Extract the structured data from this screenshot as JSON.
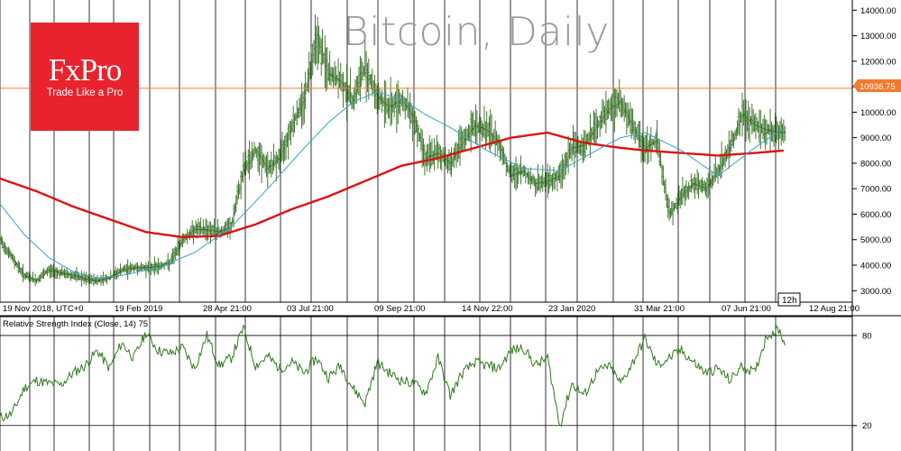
{
  "watermark": "Bitcoin, Daily",
  "logo": {
    "brand": "FxPro",
    "tagline": "Trade Like a Pro"
  },
  "timeframe_badge": "12h",
  "price_panel": {
    "last_price_label": "10936.75",
    "last_price": 10936.75,
    "y_ticks": [
      "3000.00",
      "4000.00",
      "5000.00",
      "6000.00",
      "7000.00",
      "8000.00",
      "9000.00",
      "10000.00",
      "11000.00",
      "12000.00",
      "13000.00",
      "14000.00"
    ],
    "y_tick_values": [
      3000,
      4000,
      5000,
      6000,
      7000,
      8000,
      9000,
      10000,
      11000,
      12000,
      13000,
      14000
    ],
    "ylim": [
      2550,
      14400
    ]
  },
  "rsi_panel": {
    "title": "Relative Strength Index (Close, 14) 75",
    "levels": [
      "80",
      "20"
    ],
    "level_values": [
      80,
      20
    ],
    "ylim": [
      3,
      92
    ]
  },
  "x_ticks": [
    "19 Nov 2018, UTC+0",
    "19 Feb 2019",
    "28 Apr 21:00",
    "03 Jul 21:00",
    "09 Sep 21:00",
    "14 Nov 22:00",
    "23 Jan 2020",
    "31 Mar 21:00",
    "07 Jun 21:00",
    "12 Aug 21:00"
  ],
  "colors": {
    "candles": "#2f6a1d",
    "ma_fast": "#3aa3c9",
    "ma_slow": "#dd1111",
    "rsi": "#2f7a1d",
    "last_price": "#f07a2f"
  },
  "chart_data": {
    "type": "line",
    "title": "Bitcoin, Daily",
    "x_index_range": [
      0,
      650
    ],
    "price_close": {
      "x": [
        0,
        10,
        20,
        30,
        40,
        50,
        60,
        70,
        80,
        90,
        100,
        110,
        120,
        130,
        140,
        150,
        160,
        170,
        180,
        190,
        200,
        210,
        220,
        230,
        240,
        250,
        260,
        270,
        280,
        290,
        300,
        310,
        320,
        330,
        340,
        350,
        360,
        370,
        380,
        390,
        400,
        410,
        420,
        430,
        440,
        450,
        460,
        470,
        480,
        490,
        500,
        510,
        520,
        530,
        540,
        550,
        560,
        570,
        580,
        590,
        600,
        610,
        620,
        630,
        640
      ],
      "y": [
        5000,
        4300,
        3600,
        3400,
        3800,
        3700,
        3600,
        3450,
        3400,
        3500,
        3800,
        3900,
        3900,
        3950,
        4100,
        5000,
        5400,
        5400,
        5300,
        5500,
        7700,
        8500,
        7800,
        8200,
        9500,
        10500,
        13000,
        11500,
        11200,
        10500,
        11800,
        10600,
        10200,
        10500,
        9800,
        8200,
        8400,
        8000,
        8800,
        9500,
        9300,
        8800,
        7500,
        7700,
        7200,
        7300,
        7500,
        8600,
        8700,
        9400,
        10100,
        10400,
        9400,
        8600,
        8900,
        6000,
        6700,
        7200,
        7000,
        7700,
        8600,
        9900,
        9500,
        9300,
        9200
      ]
    },
    "ma_fast": {
      "x": [
        0,
        20,
        40,
        60,
        80,
        100,
        130,
        160,
        190,
        220,
        250,
        270,
        290,
        310,
        330,
        350,
        370,
        400,
        430,
        460,
        490,
        510,
        530,
        560,
        590,
        620,
        645
      ],
      "y": [
        6400,
        5200,
        4300,
        3750,
        3500,
        3600,
        3900,
        4500,
        5500,
        7000,
        8600,
        9600,
        10400,
        10800,
        10500,
        9900,
        9400,
        8500,
        7800,
        7700,
        8500,
        9000,
        9200,
        8500,
        7500,
        8600,
        9400
      ]
    },
    "ma_slow": {
      "x": [
        0,
        30,
        60,
        90,
        120,
        150,
        180,
        210,
        240,
        270,
        300,
        330,
        360,
        390,
        420,
        450,
        480,
        510,
        530,
        560,
        590,
        620,
        645
      ],
      "y": [
        7400,
        6900,
        6300,
        5800,
        5300,
        5100,
        5150,
        5600,
        6200,
        6700,
        7300,
        7900,
        8200,
        8600,
        9000,
        9200,
        8800,
        8600,
        8500,
        8400,
        8300,
        8400,
        8500
      ]
    },
    "rsi": {
      "x": [
        0,
        10,
        20,
        30,
        40,
        50,
        60,
        70,
        80,
        90,
        100,
        110,
        120,
        130,
        140,
        150,
        160,
        170,
        180,
        190,
        200,
        210,
        220,
        230,
        240,
        250,
        260,
        270,
        280,
        290,
        300,
        310,
        320,
        330,
        340,
        350,
        360,
        370,
        380,
        390,
        400,
        410,
        420,
        430,
        440,
        450,
        460,
        470,
        480,
        490,
        500,
        510,
        520,
        530,
        540,
        550,
        560,
        570,
        580,
        590,
        600,
        610,
        620,
        630,
        640,
        645
      ],
      "y": [
        25,
        28,
        45,
        50,
        48,
        47,
        55,
        60,
        70,
        58,
        75,
        65,
        82,
        70,
        68,
        72,
        58,
        80,
        60,
        65,
        85,
        60,
        66,
        58,
        62,
        55,
        65,
        52,
        60,
        45,
        35,
        62,
        55,
        50,
        48,
        42,
        65,
        40,
        55,
        62,
        60,
        58,
        70,
        72,
        60,
        65,
        20,
        48,
        40,
        55,
        60,
        48,
        62,
        78,
        60,
        65,
        70,
        62,
        55,
        58,
        50,
        60,
        55,
        80,
        84,
        75
      ]
    }
  }
}
